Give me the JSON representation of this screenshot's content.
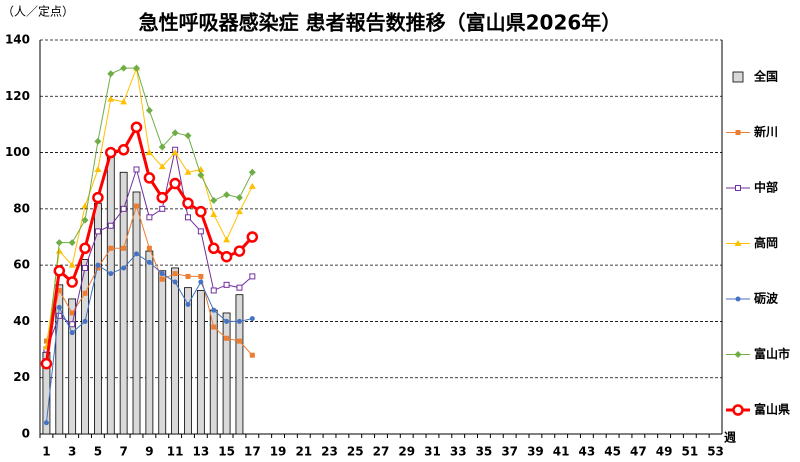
{
  "chart_data": {
    "type": "bar_line",
    "title": "急性呼吸器感染症 患者報告数推移（富山県2026年）",
    "y_label": "（人／定点）",
    "x_label": "週",
    "categories": [
      1,
      null,
      3,
      null,
      5,
      null,
      7,
      null,
      9,
      null,
      11,
      null,
      13,
      null,
      15,
      null,
      17,
      null,
      19,
      null,
      21,
      null,
      23,
      null,
      25,
      null,
      27,
      null,
      29,
      null,
      31,
      null,
      33,
      null,
      35,
      null,
      37,
      null,
      39,
      null,
      41,
      null,
      43,
      null,
      45,
      null,
      47,
      null,
      49,
      null,
      51,
      null,
      53
    ],
    "ylim": [
      0,
      140
    ],
    "yticks": [
      0,
      20,
      40,
      60,
      80,
      100,
      120,
      140
    ],
    "grid": true,
    "legend": "right",
    "series": [
      {
        "name": "全国",
        "type": "bar",
        "color": "#d9d9d9",
        "values": [
          29,
          53,
          48,
          62,
          82,
          101,
          93,
          86,
          65,
          58,
          59,
          52,
          51,
          44,
          43,
          49.5,
          null,
          null,
          null,
          null,
          null,
          null,
          null,
          null,
          null,
          null,
          null,
          null,
          null,
          null,
          null,
          null,
          null,
          null,
          null,
          null,
          null,
          null,
          null,
          null,
          null,
          null,
          null,
          null,
          null,
          null,
          null,
          null,
          null,
          null,
          null,
          null,
          null
        ]
      },
      {
        "name": "新川",
        "type": "line",
        "marker": "square",
        "color": "#ed7d31",
        "line_width": 1,
        "values": [
          33,
          51,
          43,
          50,
          59,
          66,
          66,
          81,
          66,
          55,
          57,
          56,
          56,
          38,
          34,
          33,
          28,
          null,
          null,
          null,
          null,
          null,
          null,
          null,
          null,
          null,
          null,
          null,
          null,
          null,
          null,
          null,
          null,
          null,
          null,
          null,
          null,
          null,
          null,
          null,
          null,
          null,
          null,
          null,
          null,
          null,
          null,
          null,
          null,
          null,
          null,
          null,
          null
        ]
      },
      {
        "name": "中部",
        "type": "line",
        "marker": "open-square",
        "color": "#7030a0",
        "line_width": 1,
        "values": [
          30,
          42,
          39,
          59,
          72,
          74,
          80,
          94,
          77,
          80,
          101,
          77,
          72,
          51,
          53,
          52,
          56,
          null,
          null,
          null,
          null,
          null,
          null,
          null,
          null,
          null,
          null,
          null,
          null,
          null,
          null,
          null,
          null,
          null,
          null,
          null,
          null,
          null,
          null,
          null,
          null,
          null,
          null,
          null,
          null,
          null,
          null,
          null,
          null,
          null,
          null,
          null,
          null
        ]
      },
      {
        "name": "高岡",
        "type": "line",
        "marker": "triangle",
        "color": "#ffc000",
        "line_width": 1,
        "values": [
          31,
          65,
          60,
          81,
          94,
          119,
          118,
          130,
          100,
          95,
          100,
          93,
          94,
          78,
          69,
          79,
          88,
          null,
          null,
          null,
          null,
          null,
          null,
          null,
          null,
          null,
          null,
          null,
          null,
          null,
          null,
          null,
          null,
          null,
          null,
          null,
          null,
          null,
          null,
          null,
          null,
          null,
          null,
          null,
          null,
          null,
          null,
          null,
          null,
          null,
          null,
          null,
          null
        ]
      },
      {
        "name": "砺波",
        "type": "line",
        "marker": "circle",
        "color": "#4472c4",
        "line_width": 1,
        "values": [
          4,
          45,
          36,
          40,
          60,
          57,
          59,
          64,
          61,
          57,
          54,
          46,
          54,
          44,
          40,
          40,
          41,
          null,
          null,
          null,
          null,
          null,
          null,
          null,
          null,
          null,
          null,
          null,
          null,
          null,
          null,
          null,
          null,
          null,
          null,
          null,
          null,
          null,
          null,
          null,
          null,
          null,
          null,
          null,
          null,
          null,
          null,
          null,
          null,
          null,
          null,
          null,
          null
        ]
      },
      {
        "name": "富山市",
        "type": "line",
        "marker": "diamond",
        "color": "#70ad47",
        "line_width": 1,
        "values": [
          26,
          68,
          68,
          76,
          104,
          128,
          130,
          130,
          115,
          102,
          107,
          106,
          92,
          83,
          85,
          84,
          93,
          null,
          null,
          null,
          null,
          null,
          null,
          null,
          null,
          null,
          null,
          null,
          null,
          null,
          null,
          null,
          null,
          null,
          null,
          null,
          null,
          null,
          null,
          null,
          null,
          null,
          null,
          null,
          null,
          null,
          null,
          null,
          null,
          null,
          null,
          null,
          null
        ]
      },
      {
        "name": "富山県",
        "type": "line",
        "marker": "open-circle",
        "color": "#ff0000",
        "line_width": 3,
        "values": [
          25,
          58,
          54,
          66,
          84,
          100,
          101,
          109,
          91,
          84,
          89,
          82,
          79,
          66,
          63,
          65,
          70,
          null,
          null,
          null,
          null,
          null,
          null,
          null,
          null,
          null,
          null,
          null,
          null,
          null,
          null,
          null,
          null,
          null,
          null,
          null,
          null,
          null,
          null,
          null,
          null,
          null,
          null,
          null,
          null,
          null,
          null,
          null,
          null,
          null,
          null,
          null,
          null
        ]
      }
    ]
  }
}
